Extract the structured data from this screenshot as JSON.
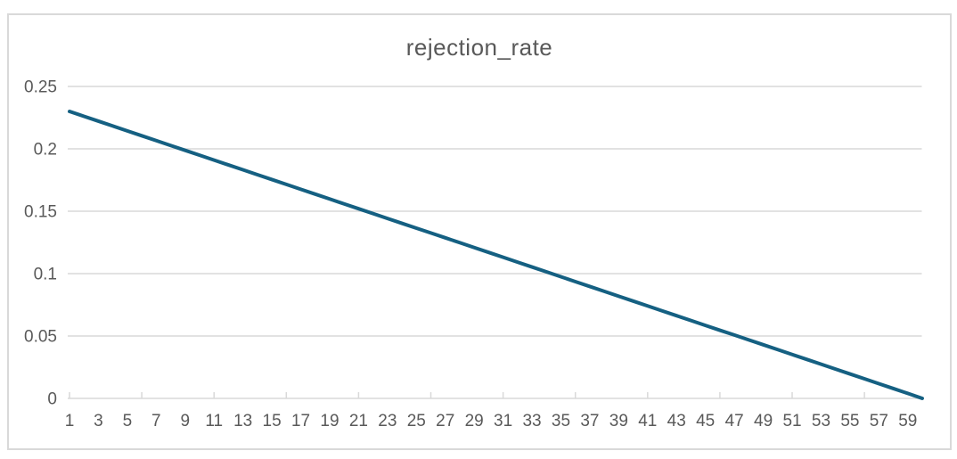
{
  "chart_data": {
    "type": "line",
    "title": "rejection_rate",
    "series_name": "rejection_rate",
    "xlabel": "",
    "ylabel": "",
    "x": [
      1,
      2,
      3,
      4,
      5,
      6,
      7,
      8,
      9,
      10,
      11,
      12,
      13,
      14,
      15,
      16,
      17,
      18,
      19,
      20,
      21,
      22,
      23,
      24,
      25,
      26,
      27,
      28,
      29,
      30,
      31,
      32,
      33,
      34,
      35,
      36,
      37,
      38,
      39,
      40,
      41,
      42,
      43,
      44,
      45,
      46,
      47,
      48,
      49,
      50,
      51,
      52,
      53,
      54,
      55,
      56,
      57,
      58,
      59,
      60
    ],
    "values": [
      0.23,
      0.2261,
      0.2222,
      0.2183,
      0.2144,
      0.2105,
      0.2066,
      0.2027,
      0.1988,
      0.1949,
      0.191,
      0.1871,
      0.1832,
      0.1793,
      0.1754,
      0.1715,
      0.1676,
      0.1637,
      0.1598,
      0.1559,
      0.152,
      0.1481,
      0.1442,
      0.1403,
      0.1364,
      0.1326,
      0.1287,
      0.1248,
      0.1209,
      0.117,
      0.1131,
      0.1092,
      0.1053,
      0.1014,
      0.0975,
      0.0936,
      0.0897,
      0.0858,
      0.0819,
      0.078,
      0.0741,
      0.0702,
      0.0663,
      0.0624,
      0.0585,
      0.0546,
      0.0508,
      0.0469,
      0.043,
      0.0391,
      0.0352,
      0.0313,
      0.0274,
      0.0235,
      0.0196,
      0.0157,
      0.0118,
      0.0079,
      0.004,
      0.0
    ],
    "xlim": [
      1,
      60
    ],
    "ylim": [
      0,
      0.25
    ],
    "yticks": [
      0,
      0.05,
      0.1,
      0.15,
      0.2,
      0.25
    ],
    "ytick_labels": [
      "0",
      "0.05",
      "0.1",
      "0.15",
      "0.2",
      "0.25"
    ],
    "x_tick_labels": [
      "1",
      "3",
      "5",
      "7",
      "9",
      "11",
      "13",
      "15",
      "17",
      "19",
      "21",
      "23",
      "25",
      "27",
      "29",
      "31",
      "33",
      "35",
      "37",
      "39",
      "41",
      "43",
      "45",
      "47",
      "49",
      "51",
      "53",
      "55",
      "57",
      "59"
    ],
    "x_axis_tick_marks": [
      1,
      6,
      11,
      16,
      21,
      26,
      31,
      36,
      41,
      46,
      51,
      56
    ],
    "grid": true,
    "legend": "none",
    "colors": {
      "line": "#156082",
      "grid": "#D9D9D9",
      "axis": "#D9D9D9",
      "tick_labels": "#595959",
      "title": "#595959",
      "frame_border": "#D9D9D9",
      "background": "#FFFFFF"
    }
  }
}
